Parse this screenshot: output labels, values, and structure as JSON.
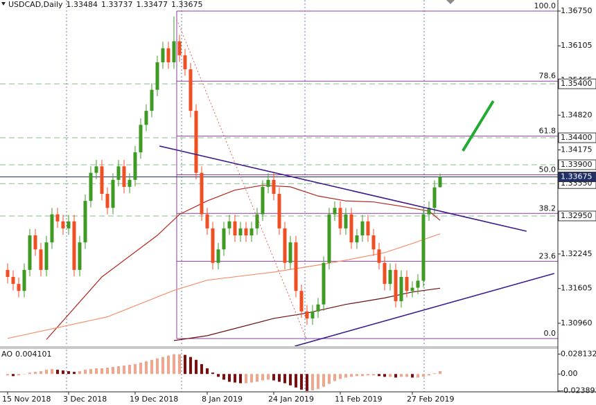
{
  "chart_data": {
    "type": "candlestick",
    "symbol": "USDCAD,Daily",
    "categories": [
      "15 Nov 2018",
      null,
      null,
      null,
      null,
      null,
      null,
      null,
      null,
      null,
      null,
      "3 Dec 2018",
      null,
      null,
      null,
      null,
      null,
      null,
      null,
      null,
      null,
      null,
      null,
      "19 Dec 2018",
      null,
      null,
      null,
      null,
      null,
      null,
      null,
      null,
      null,
      null,
      null,
      null,
      "8 Jan 2019",
      null,
      null,
      null,
      null,
      null,
      null,
      null,
      null,
      null,
      null,
      null,
      "24 Jan 2019",
      null,
      null,
      null,
      null,
      null,
      null,
      null,
      null,
      null,
      null,
      null,
      "11 Feb 2019",
      null,
      null,
      null,
      null,
      null,
      null,
      null,
      null,
      null,
      null,
      null,
      null,
      "27 Feb 2019",
      null,
      null,
      null,
      null,
      null
    ],
    "open": [
      1.3195,
      1.3182,
      1.3169,
      1.3156,
      1.3195,
      1.3259,
      1.3233,
      1.3195,
      1.3246,
      1.3298,
      1.3285,
      1.3272,
      1.3285,
      1.3195,
      1.3246,
      1.3323,
      1.3375,
      1.3387,
      1.3336,
      1.331,
      1.3362,
      1.3387,
      1.3349,
      1.3362,
      1.3413,
      1.3464,
      1.349,
      1.3529,
      1.358,
      1.3606,
      1.358,
      1.3619,
      1.3593,
      1.3567,
      1.349,
      1.3375,
      1.3298,
      1.3272,
      1.3208,
      1.3233,
      1.3272,
      1.3285,
      1.3259,
      1.3272,
      1.3259,
      1.3272,
      1.3298,
      1.3349,
      1.3362,
      1.3336,
      1.3272,
      1.3208,
      1.3246,
      1.3156,
      1.3118,
      1.3105,
      1.3118,
      1.3131,
      1.3208,
      1.3298,
      1.331,
      1.3272,
      1.3298,
      1.3246,
      1.3259,
      1.3285,
      1.3259,
      1.3233,
      1.3208,
      1.3169,
      1.3195,
      1.3137,
      1.3182,
      1.3156,
      1.3162,
      1.3175,
      1.3298,
      1.331,
      1.33484
    ],
    "high": [
      1.3207,
      1.3194,
      1.3181,
      1.3207,
      1.3271,
      1.3271,
      1.3245,
      1.3258,
      1.331,
      1.331,
      1.3297,
      1.3297,
      1.3297,
      1.3258,
      1.3335,
      1.3387,
      1.3399,
      1.3399,
      1.3348,
      1.3374,
      1.3399,
      1.3399,
      1.3374,
      1.3425,
      1.3476,
      1.3502,
      1.3541,
      1.3592,
      1.3618,
      1.3618,
      1.3665,
      1.3631,
      1.3605,
      1.3579,
      1.3502,
      1.3387,
      1.331,
      1.3284,
      1.3245,
      1.3284,
      1.3297,
      1.3297,
      1.3284,
      1.3284,
      1.3284,
      1.331,
      1.3361,
      1.3374,
      1.3374,
      1.3348,
      1.3284,
      1.3258,
      1.3258,
      1.3168,
      1.313,
      1.313,
      1.3143,
      1.322,
      1.331,
      1.3322,
      1.3322,
      1.331,
      1.331,
      1.3271,
      1.3297,
      1.3297,
      1.3271,
      1.3245,
      1.322,
      1.3207,
      1.3207,
      1.3194,
      1.3194,
      1.3174,
      1.3187,
      1.331,
      1.3322,
      1.3361,
      1.33737
    ],
    "low": [
      1.317,
      1.3157,
      1.3144,
      1.3144,
      1.3183,
      1.3221,
      1.3183,
      1.3183,
      1.3234,
      1.3273,
      1.326,
      1.326,
      1.3183,
      1.3183,
      1.3234,
      1.3311,
      1.3363,
      1.3324,
      1.3298,
      1.3298,
      1.335,
      1.3337,
      1.3337,
      1.335,
      1.3401,
      1.3452,
      1.3478,
      1.3517,
      1.3568,
      1.3568,
      1.3568,
      1.3581,
      1.3555,
      1.3478,
      1.3363,
      1.3286,
      1.326,
      1.3196,
      1.3196,
      1.3221,
      1.326,
      1.3247,
      1.3247,
      1.3247,
      1.3247,
      1.326,
      1.3286,
      1.3337,
      1.3324,
      1.326,
      1.3196,
      1.3196,
      1.3144,
      1.3106,
      1.3093,
      1.3093,
      1.3106,
      1.3119,
      1.3196,
      1.3286,
      1.326,
      1.326,
      1.3234,
      1.3234,
      1.3247,
      1.3247,
      1.3221,
      1.3196,
      1.3157,
      1.3157,
      1.3125,
      1.3125,
      1.3144,
      1.3144,
      1.315,
      1.3163,
      1.3286,
      1.3298,
      1.33477
    ],
    "close": [
      1.3182,
      1.3169,
      1.3156,
      1.3195,
      1.3259,
      1.3233,
      1.3195,
      1.3246,
      1.3298,
      1.3285,
      1.3272,
      1.3285,
      1.3195,
      1.3246,
      1.3323,
      1.3375,
      1.3387,
      1.3336,
      1.331,
      1.3362,
      1.3387,
      1.3349,
      1.3362,
      1.3413,
      1.3464,
      1.349,
      1.3529,
      1.358,
      1.3606,
      1.358,
      1.3619,
      1.3593,
      1.3567,
      1.349,
      1.3375,
      1.3298,
      1.3272,
      1.3208,
      1.3233,
      1.3272,
      1.3285,
      1.3259,
      1.3272,
      1.3259,
      1.3272,
      1.3298,
      1.3349,
      1.3362,
      1.3336,
      1.3272,
      1.3208,
      1.3246,
      1.3156,
      1.3118,
      1.3105,
      1.3118,
      1.3131,
      1.3208,
      1.3298,
      1.331,
      1.3272,
      1.3298,
      1.3246,
      1.3259,
      1.3285,
      1.3259,
      1.3233,
      1.3208,
      1.3169,
      1.3195,
      1.3137,
      1.3182,
      1.3156,
      1.3162,
      1.3175,
      1.3298,
      1.331,
      1.3348,
      1.33675
    ],
    "up_color": "#3f9a24",
    "down_color": "#f04e23",
    "ylim": [
      1.30536,
      1.36955
    ],
    "yticks": [
      {
        "value": 1.3675,
        "label": "1.36750"
      },
      1.36105,
      1.35465,
      {
        "value": 1.3482,
        "label": "1.34820"
      },
      1.34175,
      1.32245,
      1.31605,
      {
        "value": 1.3096,
        "label": "1.30960"
      }
    ],
    "levels": [
      {
        "value": 1.354,
        "label": "1.35400"
      },
      {
        "value": 1.344,
        "label": "1.34400"
      },
      {
        "value": 1.339,
        "label": "1.33900"
      },
      {
        "value": 1.3355,
        "label": "1.33550"
      },
      {
        "value": 1.3295,
        "label": "1.32950"
      }
    ],
    "level_color": "#86bd86",
    "current_color": "#22306a",
    "fib": {
      "high": 1.3675,
      "low": 1.30677,
      "color": "#8a3d9a",
      "ratios": [
        {
          "value": 100,
          "label": "100.0"
        },
        78.6,
        61.8,
        {
          "value": 50,
          "label": "50.0"
        },
        38.2,
        23.6,
        {
          "value": 0,
          "label": "0.0"
        }
      ]
    },
    "moving_averages": [
      {
        "color": "#b3261e",
        "x": [
          7,
          17,
          27,
          31,
          36,
          41,
          46,
          51,
          56,
          61,
          66,
          71,
          76,
          78
        ],
        "values": [
          1.3066,
          1.3182,
          1.3259,
          1.3298,
          1.3323,
          1.3343,
          1.3352,
          1.3349,
          1.3332,
          1.3323,
          1.3321,
          1.3313,
          1.3304,
          1.3287
        ]
      },
      {
        "color": "#f4916b",
        "x": [
          0,
          18,
          30,
          36,
          48,
          56,
          61,
          68,
          73,
          78
        ],
        "values": [
          1.3068,
          1.3108,
          1.3157,
          1.3176,
          1.3191,
          1.3204,
          1.3213,
          1.3227,
          1.3244,
          1.3262
        ]
      },
      {
        "color": "#6b0d0d",
        "x": [
          30,
          36,
          48,
          54,
          61,
          68,
          73,
          78
        ],
        "values": [
          1.3064,
          1.3073,
          1.3105,
          1.3115,
          1.3131,
          1.3143,
          1.3154,
          1.3161
        ]
      }
    ],
    "trendlines": [
      {
        "color": "#3d1a8c",
        "style": "solid",
        "x": [
          27.4,
          93.6
        ],
        "values": [
          1.34247,
          1.32667
        ]
      },
      {
        "color": "#3d1a8c",
        "style": "solid",
        "x": [
          51.8,
          98.6
        ],
        "values": [
          1.30536,
          1.31884
        ]
      },
      {
        "color": "#e0605a",
        "style": "dotted",
        "x": [
          30.5,
          53.9
        ],
        "values": [
          1.36596,
          1.30665
        ]
      },
      {
        "color": "#22aa33",
        "style": "bold",
        "x": [
          82.1,
          87.6
        ],
        "values": [
          1.34157,
          1.35081
        ]
      }
    ],
    "ao": {
      "name": "AO",
      "up_color": "#f2a58a",
      "down_color": "#800d0d",
      "ylim": [
        -0.0271,
        0.0344
      ],
      "yticks": [
        0.028132,
        {
          "value": 0,
          "label": "0.00"
        },
        -0.023893
      ],
      "values": [
        -0.002,
        -0.003,
        -0.002,
        0.0,
        0.002,
        0.003,
        0.004,
        0.006,
        0.007,
        0.006,
        0.005,
        0.004,
        0.003,
        0.004,
        0.006,
        0.007,
        0.008,
        0.008,
        0.009,
        0.01,
        0.011,
        0.012,
        0.013,
        0.014,
        0.016,
        0.018,
        0.02,
        0.022,
        0.024,
        0.026,
        0.028,
        0.028,
        0.027,
        0.024,
        0.02,
        0.014,
        0.008,
        0.002,
        -0.004,
        -0.008,
        -0.011,
        -0.012,
        -0.013,
        -0.013,
        -0.012,
        -0.011,
        -0.009,
        -0.008,
        -0.009,
        -0.011,
        -0.013,
        -0.016,
        -0.019,
        -0.022,
        -0.024,
        -0.023,
        -0.021,
        -0.018,
        -0.014,
        -0.01,
        -0.007,
        -0.005,
        -0.004,
        -0.003,
        -0.003,
        -0.002,
        -0.002,
        -0.003,
        -0.004,
        -0.004,
        -0.005,
        -0.004,
        -0.004,
        -0.005,
        -0.005,
        -0.004,
        -0.002,
        0.001,
        0.004101
      ]
    }
  }
}
